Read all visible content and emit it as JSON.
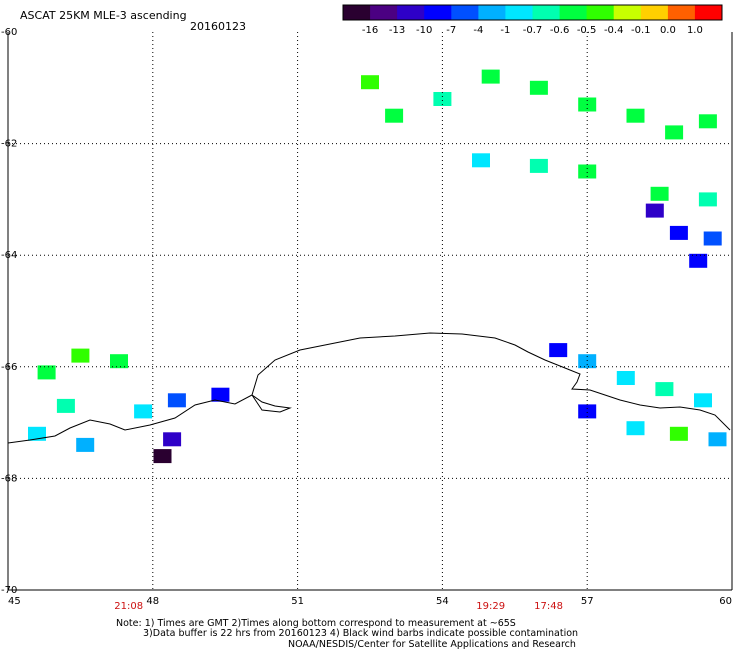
{
  "chart_data": {
    "type": "heatmap",
    "title": "ASCAT 25KM MLE-3 ascending",
    "date": "20160123",
    "x_axis": {
      "range": [
        45,
        60
      ],
      "tick_labels": [
        "45",
        "48",
        "51",
        "54",
        "57",
        "60"
      ]
    },
    "y_axis": {
      "range": [
        -70,
        -60
      ],
      "tick_labels": [
        "-60",
        "-62",
        "-64",
        "-66",
        "-68",
        "-70"
      ]
    },
    "grid": true,
    "colorbar": {
      "placement": "top-right",
      "tick_labels": [
        "-16",
        "-13",
        "-10",
        "-7",
        "-4",
        "-1",
        "-0.7",
        "-0.6",
        "-0.5",
        "-0.4",
        "-0.1",
        "0.0",
        "1.0"
      ],
      "colors": [
        "#2a0030",
        "#4b0082",
        "#2e00c8",
        "#0000ff",
        "#0050ff",
        "#00b0ff",
        "#00e6ff",
        "#00ffb0",
        "#00ff40",
        "#30ff00",
        "#c8ff00",
        "#ffd000",
        "#ff6000",
        "#ff0000"
      ]
    },
    "time_labels": [
      {
        "text": "21:08",
        "x": 47.5
      },
      {
        "text": "19:29",
        "x": 55.0
      },
      {
        "text": "17:48",
        "x": 56.2
      }
    ],
    "regions": [
      {
        "cells": [
          [
            59.5,
            -61.6,
            "#00ff40"
          ],
          [
            58.8,
            -61.8,
            "#00ff40"
          ],
          [
            58.0,
            -61.5,
            "#00ff40"
          ],
          [
            57.0,
            -61.3,
            "#00ff40"
          ],
          [
            56.0,
            -61.0,
            "#00ff40"
          ],
          [
            55.0,
            -60.8,
            "#00ff40"
          ],
          [
            54.0,
            -61.2,
            "#00ffb0"
          ],
          [
            53.0,
            -61.5,
            "#00ff40"
          ],
          [
            52.5,
            -60.9,
            "#30ff00"
          ],
          [
            54.8,
            -62.3,
            "#00e6ff"
          ],
          [
            56.0,
            -62.4,
            "#00ffb0"
          ],
          [
            57.0,
            -62.5,
            "#00ff40"
          ],
          [
            58.5,
            -62.9,
            "#00ff40"
          ],
          [
            59.5,
            -63.0,
            "#00ffb0"
          ],
          [
            59.6,
            -63.7,
            "#0050ff"
          ]
        ]
      },
      {
        "cells": [
          [
            58.4,
            -63.2,
            "#2e00c8"
          ],
          [
            58.9,
            -63.6,
            "#0000ff"
          ],
          [
            59.3,
            -64.1,
            "#0000ff"
          ]
        ]
      },
      {
        "cells": [
          [
            45.8,
            -66.1,
            "#00ff40"
          ],
          [
            46.5,
            -65.8,
            "#30ff00"
          ],
          [
            47.3,
            -65.9,
            "#00ff40"
          ],
          [
            46.2,
            -66.7,
            "#00ffb0"
          ],
          [
            45.6,
            -67.2,
            "#00e6ff"
          ],
          [
            46.6,
            -67.4,
            "#00b0ff"
          ],
          [
            47.8,
            -66.8,
            "#00e6ff"
          ],
          [
            48.5,
            -66.6,
            "#0050ff"
          ],
          [
            49.4,
            -66.5,
            "#0000ff"
          ],
          [
            48.4,
            -67.3,
            "#2e00c8"
          ],
          [
            48.2,
            -67.6,
            "#2a0030"
          ]
        ]
      },
      {
        "cells": [
          [
            56.4,
            -65.7,
            "#0000ff"
          ],
          [
            57.0,
            -65.9,
            "#00b0ff"
          ],
          [
            57.8,
            -66.2,
            "#00e6ff"
          ],
          [
            58.6,
            -66.4,
            "#00ffb0"
          ],
          [
            59.4,
            -66.6,
            "#00e6ff"
          ],
          [
            57.0,
            -66.8,
            "#0000ff"
          ],
          [
            58.0,
            -67.1,
            "#00e6ff"
          ],
          [
            58.9,
            -67.2,
            "#30ff00"
          ],
          [
            59.7,
            -67.3,
            "#00b0ff"
          ]
        ]
      }
    ]
  },
  "notes": {
    "line1": "Note: 1) Times are GMT 2)Times along bottom correspond to measurement at ~65S",
    "line2": "3)Data buffer is 22 hrs from 20160123 4) Black wind barbs indicate possible contamination",
    "line3": "NOAA/NESDIS/Center for Satellite Applications and Research"
  }
}
